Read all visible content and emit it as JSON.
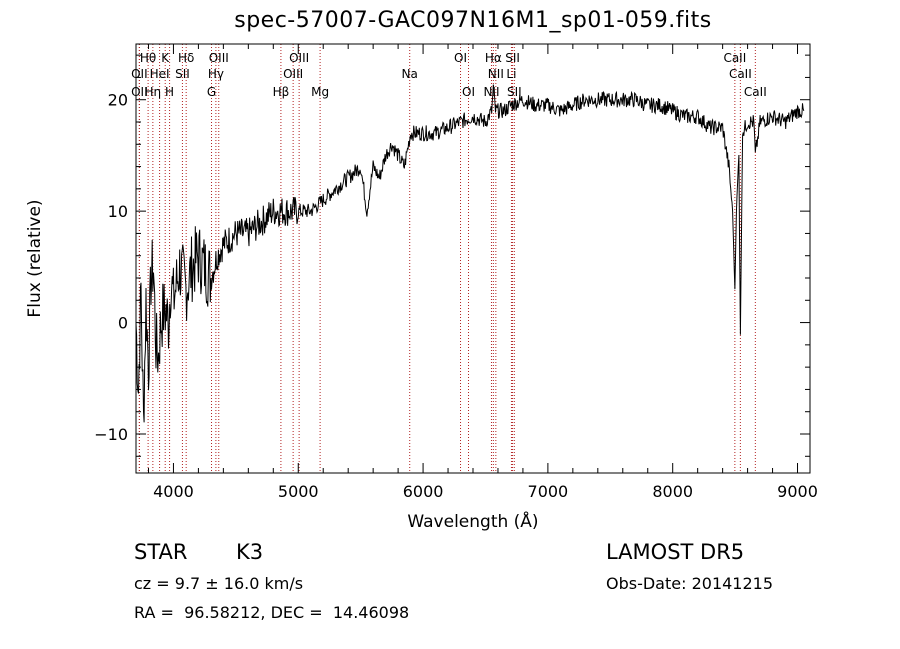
{
  "chart_data": {
    "type": "line",
    "title": "spec-57007-GAC097N16M1_sp01-059.fits",
    "xlabel": "Wavelength (Å)",
    "ylabel": "Flux (relative)",
    "xlim": [
      3700,
      9100
    ],
    "ylim": [
      -13.5,
      25
    ],
    "xticks": [
      4000,
      5000,
      6000,
      7000,
      8000,
      9000
    ],
    "yticks": [
      -10,
      0,
      10,
      20
    ],
    "grid": false,
    "line_color": "#000000",
    "marker_color": "#b22222",
    "spectrum": {
      "x": [
        3700,
        3720,
        3740,
        3760,
        3780,
        3800,
        3820,
        3840,
        3860,
        3880,
        3900,
        3920,
        3940,
        3960,
        3980,
        4000,
        4050,
        4100,
        4150,
        4200,
        4250,
        4300,
        4350,
        4400,
        4500,
        4600,
        4700,
        4800,
        4900,
        5000,
        5100,
        5200,
        5300,
        5400,
        5500,
        5550,
        5600,
        5650,
        5700,
        5750,
        5800,
        5850,
        5900,
        5950,
        6000,
        6100,
        6200,
        6300,
        6400,
        6500,
        6550,
        6563,
        6580,
        6600,
        6650,
        6700,
        6800,
        6900,
        7000,
        7100,
        7200,
        7300,
        7400,
        7500,
        7600,
        7700,
        7800,
        7900,
        8000,
        8100,
        8200,
        8300,
        8400,
        8450,
        8480,
        8498,
        8510,
        8530,
        8542,
        8560,
        8600,
        8650,
        8662,
        8700,
        8800,
        8900,
        9000,
        9050
      ],
      "y": [
        0,
        -6,
        3,
        -9,
        2,
        -4,
        4,
        5,
        -2,
        -3,
        0,
        1,
        1,
        0,
        4,
        2,
        5,
        3,
        5,
        6,
        5,
        4,
        6,
        7,
        8,
        8,
        9,
        10,
        10,
        10,
        10,
        11,
        12,
        13,
        14,
        10,
        14,
        13,
        15,
        16,
        15,
        14,
        17,
        17,
        17,
        17,
        17.5,
        18,
        18.5,
        18,
        19,
        21,
        19,
        19,
        19,
        19.5,
        20,
        19.5,
        19.5,
        19,
        19.5,
        20,
        20,
        20,
        20,
        20,
        19.5,
        19.5,
        19,
        18.5,
        18.5,
        17.5,
        17.5,
        14,
        10,
        3,
        10,
        15,
        -1,
        17,
        18,
        18,
        15,
        18,
        18.5,
        18,
        19,
        19
      ]
    },
    "lines": [
      {
        "name": "Hθ",
        "x": 3797,
        "row": 1
      },
      {
        "name": "K",
        "x": 3934,
        "row": 1
      },
      {
        "name": "Hδ",
        "x": 4102,
        "row": 1
      },
      {
        "name": "OIII",
        "x": 4363,
        "row": 1
      },
      {
        "name": "OIII",
        "x": 5007,
        "row": 1
      },
      {
        "name": "OI",
        "x": 6300,
        "row": 1
      },
      {
        "name": "Hα",
        "x": 6563,
        "row": 1
      },
      {
        "name": "SII",
        "x": 6717,
        "row": 1
      },
      {
        "name": "CaII",
        "x": 8498,
        "row": 1
      },
      {
        "name": "OII",
        "x": 3727,
        "row": 2
      },
      {
        "name": "HeI",
        "x": 3889,
        "row": 2
      },
      {
        "name": "SII",
        "x": 4072,
        "row": 2
      },
      {
        "name": "Hγ",
        "x": 4340,
        "row": 2
      },
      {
        "name": "OIII",
        "x": 4959,
        "row": 2
      },
      {
        "name": "Na",
        "x": 5893,
        "row": 2
      },
      {
        "name": "NII",
        "x": 6583,
        "row": 2
      },
      {
        "name": "Li",
        "x": 6708,
        "row": 2
      },
      {
        "name": "CaII",
        "x": 8542,
        "row": 2
      },
      {
        "name": "OII",
        "x": 3727,
        "row": 3
      },
      {
        "name": "Hη",
        "x": 3835,
        "row": 3
      },
      {
        "name": "H",
        "x": 3969,
        "row": 3
      },
      {
        "name": "G",
        "x": 4305,
        "row": 3
      },
      {
        "name": "Hβ",
        "x": 4861,
        "row": 3
      },
      {
        "name": "Mg",
        "x": 5175,
        "row": 3
      },
      {
        "name": "OI",
        "x": 6364,
        "row": 3
      },
      {
        "name": "NII",
        "x": 6548,
        "row": 3
      },
      {
        "name": "SII",
        "x": 6731,
        "row": 3
      },
      {
        "name": "CaII",
        "x": 8662,
        "row": 3
      }
    ]
  },
  "info": {
    "class_label": "STAR",
    "subclass": "K3",
    "survey": "LAMOST DR5",
    "redshift": "cz = 9.7 ± 16.0 km/s",
    "obs_date": "Obs-Date: 20141215",
    "coords": "RA =  96.58212, DEC =  14.46098"
  }
}
